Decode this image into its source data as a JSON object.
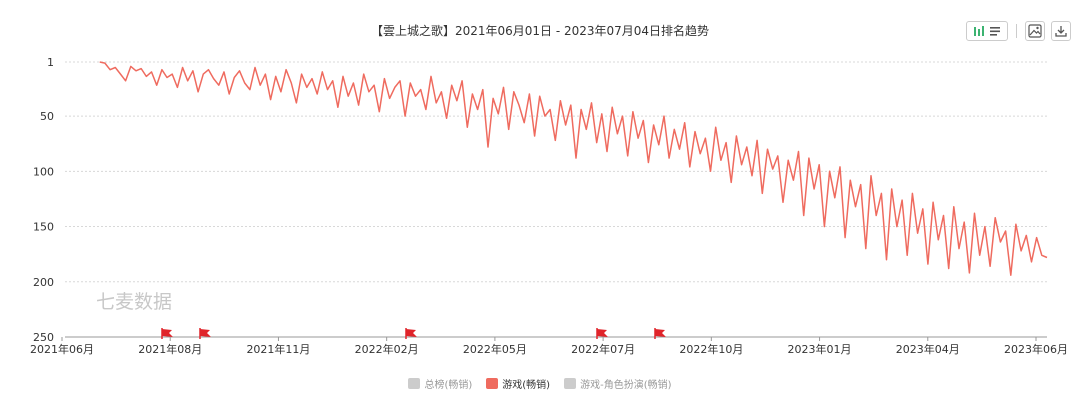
{
  "title": "【雲上城之歌】2021年06月01日 - 2023年07月04日排名趋势",
  "watermark": "七麦数据",
  "toolbar": {
    "chart_toggle_icon": "bar-line-toggle-icon",
    "list_icon": "list-icon",
    "image_icon": "image-icon",
    "download_icon": "download-icon"
  },
  "legend": [
    {
      "label": "总榜(畅销)",
      "color": "#cccccc",
      "active": false
    },
    {
      "label": "游戏(畅销)",
      "color": "#ef6b5f",
      "active": true
    },
    {
      "label": "游戏-角色扮演(畅销)",
      "color": "#cccccc",
      "active": false
    }
  ],
  "colors": {
    "series": "#ef6b5f",
    "grid": "#d8d8d8",
    "flag": "#e0242a",
    "axis_text": "#333333",
    "watermark": "#c8c8c8"
  },
  "chart_data": {
    "type": "line",
    "title": "【雲上城之歌】2021年06月01日 - 2023年07月04日排名趋势",
    "y_axis": {
      "inverted": true,
      "ticks": [
        1,
        50,
        100,
        150,
        200,
        250
      ],
      "range": [
        1,
        250
      ]
    },
    "x_axis": {
      "ticks": [
        "2021年06月",
        "2021年08月",
        "2021年11月",
        "2022年02月",
        "2022年05月",
        "2022年07月",
        "2022年10月",
        "2023年01月",
        "2023年04月",
        "2023年06月"
      ]
    },
    "grid": "horizontal dashed",
    "legend_position": "bottom",
    "series": [
      {
        "name": "游戏(畅销)",
        "color": "#ef6b5f",
        "x_start": "2021-06-28",
        "x_end": "2023-07-04",
        "y": [
          1,
          2,
          8,
          6,
          12,
          18,
          5,
          9,
          7,
          14,
          10,
          22,
          8,
          15,
          12,
          24,
          6,
          18,
          9,
          28,
          12,
          8,
          16,
          22,
          10,
          30,
          15,
          9,
          20,
          26,
          6,
          22,
          12,
          35,
          14,
          28,
          8,
          20,
          38,
          12,
          24,
          16,
          30,
          10,
          26,
          18,
          42,
          14,
          32,
          20,
          40,
          12,
          28,
          22,
          46,
          16,
          34,
          24,
          18,
          50,
          20,
          32,
          26,
          44,
          14,
          38,
          28,
          52,
          22,
          36,
          18,
          60,
          30,
          44,
          26,
          78,
          34,
          48,
          24,
          62,
          28,
          40,
          56,
          30,
          68,
          32,
          50,
          44,
          72,
          36,
          58,
          40,
          88,
          44,
          62,
          38,
          74,
          48,
          82,
          42,
          66,
          50,
          86,
          46,
          70,
          54,
          92,
          58,
          76,
          50,
          88,
          62,
          80,
          56,
          96,
          64,
          84,
          70,
          100,
          60,
          90,
          74,
          110,
          68,
          94,
          78,
          104,
          72,
          120,
          80,
          98,
          86,
          128,
          90,
          108,
          82,
          140,
          88,
          116,
          94,
          150,
          100,
          124,
          96,
          160,
          108,
          132,
          112,
          170,
          104,
          140,
          120,
          180,
          116,
          150,
          126,
          176,
          120,
          156,
          134,
          184,
          128,
          162,
          140,
          188,
          132,
          170,
          146,
          192,
          138,
          176,
          150,
          186,
          142,
          164,
          154,
          194,
          148,
          172,
          158,
          182,
          160,
          176,
          178
        ]
      }
    ],
    "events": [
      "2021年07月",
      "2021年08月",
      "2022年02月",
      "2022年07月",
      "2022年08月"
    ]
  }
}
